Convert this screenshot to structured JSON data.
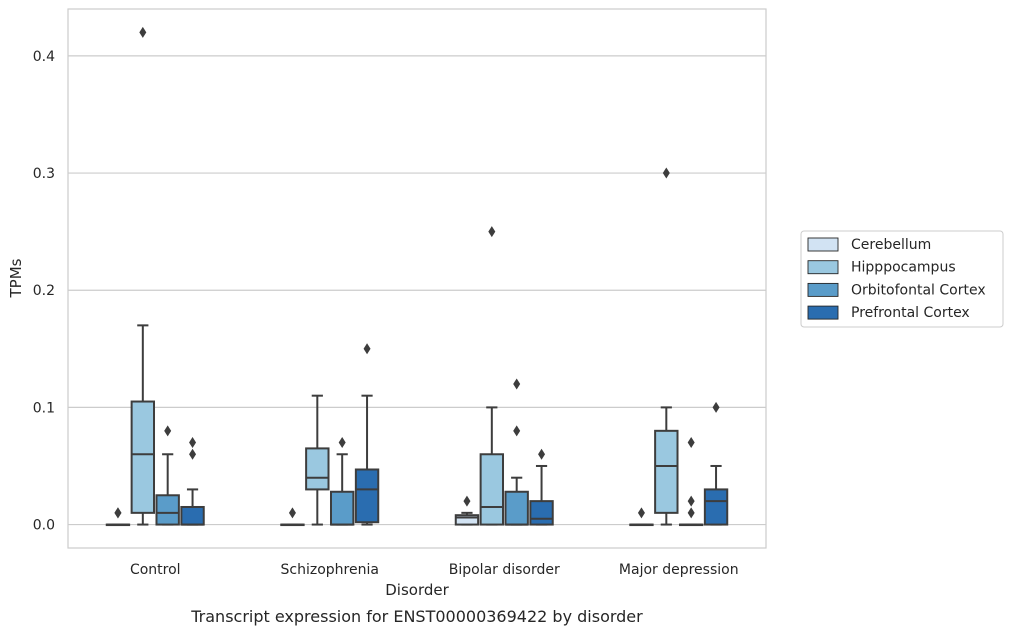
{
  "chart_data": {
    "type": "box",
    "caption": "Transcript expression for ENST00000369422 by disorder",
    "xlabel": "Disorder",
    "ylabel": "TPMs",
    "ylim": [
      -0.02,
      0.44
    ],
    "yticks": [
      0.0,
      0.1,
      0.2,
      0.3,
      0.4
    ],
    "ytick_labels": [
      "0.0",
      "0.1",
      "0.2",
      "0.3",
      "0.4"
    ],
    "grid": "horizontal",
    "legend_position": "right",
    "categories": [
      "Control",
      "Schizophrenia",
      "Bipolar disorder",
      "Major depression"
    ],
    "series": [
      {
        "name": "Cerebellum",
        "color": "#d2e3f3",
        "boxes": [
          {
            "whislo": 0,
            "q1": 0,
            "med": 0,
            "q3": 0,
            "whishi": 0,
            "fliers": [
              0.01,
              0.01
            ]
          },
          {
            "whislo": 0,
            "q1": 0,
            "med": 0,
            "q3": 0,
            "whishi": 0,
            "fliers": [
              0.01
            ]
          },
          {
            "whislo": 0,
            "q1": 0,
            "med": 0.006,
            "q3": 0.008,
            "whishi": 0.01,
            "fliers": [
              0.02
            ]
          },
          {
            "whislo": 0,
            "q1": 0,
            "med": 0,
            "q3": 0,
            "whishi": 0,
            "fliers": [
              0.01
            ]
          }
        ]
      },
      {
        "name": "Hipppocampus",
        "color": "#9ac8e0",
        "boxes": [
          {
            "whislo": 0,
            "q1": 0.01,
            "med": 0.06,
            "q3": 0.105,
            "whishi": 0.17,
            "fliers": [
              0.42
            ]
          },
          {
            "whislo": 0,
            "q1": 0.03,
            "med": 0.04,
            "q3": 0.065,
            "whishi": 0.11,
            "fliers": []
          },
          {
            "whislo": 0,
            "q1": 0,
            "med": 0.015,
            "q3": 0.06,
            "whishi": 0.1,
            "fliers": [
              0.25
            ]
          },
          {
            "whislo": 0,
            "q1": 0.01,
            "med": 0.05,
            "q3": 0.08,
            "whishi": 0.1,
            "fliers": [
              0.3
            ]
          }
        ]
      },
      {
        "name": "Orbitofontal Cortex",
        "color": "#5a9cc9",
        "boxes": [
          {
            "whislo": 0,
            "q1": 0,
            "med": 0.01,
            "q3": 0.025,
            "whishi": 0.06,
            "fliers": [
              0.08
            ]
          },
          {
            "whislo": 0,
            "q1": 0,
            "med": 0,
            "q3": 0.028,
            "whishi": 0.06,
            "fliers": [
              0.07
            ]
          },
          {
            "whislo": 0,
            "q1": 0,
            "med": 0,
            "q3": 0.028,
            "whishi": 0.04,
            "fliers": [
              0.08,
              0.12
            ]
          },
          {
            "whislo": 0,
            "q1": 0,
            "med": 0,
            "q3": 0,
            "whishi": 0,
            "fliers": [
              0.01,
              0.02,
              0.07
            ]
          }
        ]
      },
      {
        "name": "Prefrontal Cortex",
        "color": "#2a6db0",
        "boxes": [
          {
            "whislo": 0,
            "q1": 0,
            "med": 0,
            "q3": 0.015,
            "whishi": 0.03,
            "fliers": [
              0.06,
              0.07
            ]
          },
          {
            "whislo": 0,
            "q1": 0.002,
            "med": 0.03,
            "q3": 0.047,
            "whishi": 0.11,
            "fliers": [
              0.15
            ]
          },
          {
            "whislo": 0,
            "q1": 0,
            "med": 0.005,
            "q3": 0.02,
            "whishi": 0.05,
            "fliers": [
              0.06
            ]
          },
          {
            "whislo": 0,
            "q1": 0,
            "med": 0.02,
            "q3": 0.03,
            "whishi": 0.05,
            "fliers": [
              0.1
            ]
          }
        ]
      }
    ]
  }
}
